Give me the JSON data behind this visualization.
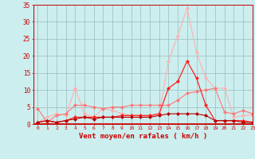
{
  "x": [
    0,
    1,
    2,
    3,
    4,
    5,
    6,
    7,
    8,
    9,
    10,
    11,
    12,
    13,
    14,
    15,
    16,
    17,
    18,
    19,
    20,
    21,
    22,
    23
  ],
  "line_light": [
    0.5,
    2.0,
    3.0,
    2.5,
    10.5,
    3.0,
    2.0,
    4.5,
    4.0,
    3.0,
    2.5,
    2.5,
    2.0,
    3.0,
    18.5,
    26.0,
    34.0,
    21.0,
    13.5,
    10.5,
    10.5,
    2.0,
    2.5,
    2.5
  ],
  "line_mid": [
    4.5,
    0.5,
    2.5,
    3.0,
    5.5,
    5.5,
    5.0,
    4.5,
    5.0,
    5.0,
    5.5,
    5.5,
    5.5,
    5.5,
    5.5,
    7.0,
    9.0,
    9.5,
    10.0,
    10.5,
    3.5,
    3.0,
    4.0,
    3.0
  ],
  "line_dark": [
    0.5,
    1.0,
    0.5,
    1.0,
    2.0,
    2.0,
    2.0,
    2.0,
    2.0,
    2.5,
    2.5,
    2.5,
    2.5,
    3.0,
    10.5,
    12.5,
    18.5,
    13.5,
    5.5,
    1.0,
    1.0,
    1.0,
    1.0,
    0.5
  ],
  "line_darkest": [
    0.5,
    1.0,
    0.5,
    1.0,
    1.5,
    2.0,
    1.5,
    2.0,
    2.0,
    2.0,
    2.0,
    2.0,
    2.0,
    2.5,
    3.0,
    3.0,
    3.0,
    3.0,
    2.5,
    1.0,
    1.0,
    1.0,
    0.5,
    0.5
  ],
  "color_light": "#ffb0b0",
  "color_mid": "#ff7777",
  "color_dark": "#ff2222",
  "color_darkest": "#bb0000",
  "bg_color": "#cceeee",
  "grid_color": "#99bbbb",
  "xlabel": "Vent moyen/en rafales ( km/h )",
  "ylim": [
    0,
    35
  ],
  "xlim": [
    -0.5,
    23
  ],
  "yticks": [
    0,
    5,
    10,
    15,
    20,
    25,
    30,
    35
  ],
  "xticks": [
    0,
    1,
    2,
    3,
    4,
    5,
    6,
    7,
    8,
    9,
    10,
    11,
    12,
    13,
    14,
    15,
    16,
    17,
    18,
    19,
    20,
    21,
    22,
    23
  ],
  "markersize": 2.0
}
